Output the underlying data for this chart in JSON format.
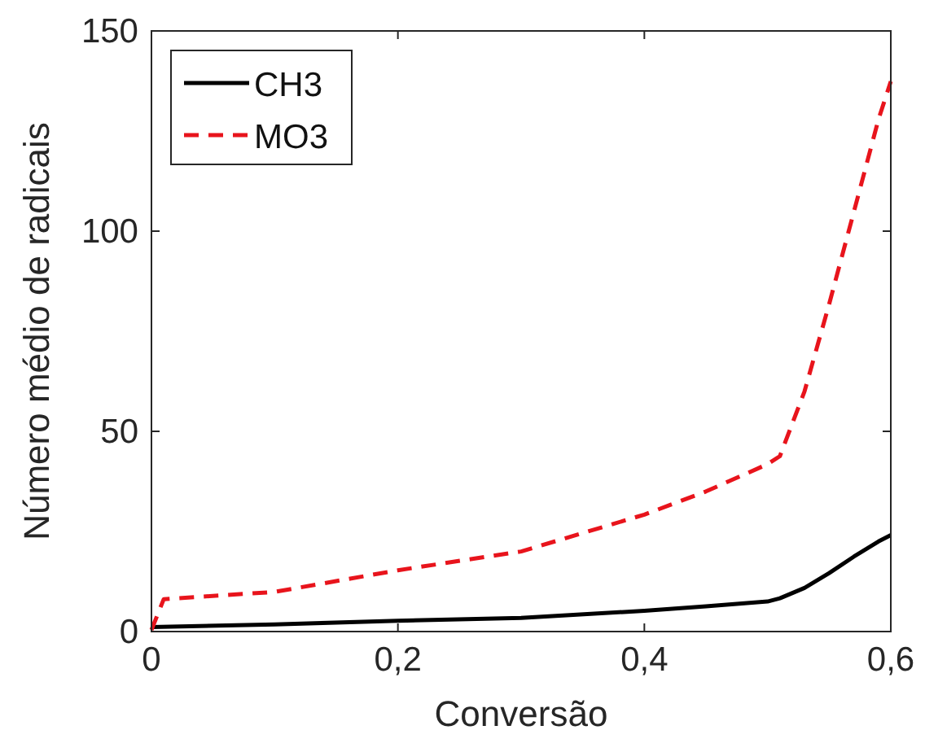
{
  "chart_data": {
    "type": "line",
    "xlabel": "Conversão",
    "ylabel": "Número médio de radicais",
    "xlim": [
      0,
      0.6
    ],
    "ylim": [
      0,
      150
    ],
    "xticks": [
      {
        "value": 0,
        "label": "0"
      },
      {
        "value": 0.2,
        "label": "0,2"
      },
      {
        "value": 0.4,
        "label": "0,4"
      },
      {
        "value": 0.6,
        "label": "0,6"
      }
    ],
    "yticks": [
      0,
      50,
      100,
      150
    ],
    "grid": false,
    "legend": "top left",
    "series": [
      {
        "name": "CH3",
        "color": "#000000",
        "line_style": "solid",
        "x": [
          0,
          0.1,
          0.2,
          0.3,
          0.4,
          0.45,
          0.5,
          0.51,
          0.53,
          0.55,
          0.57,
          0.59,
          0.6
        ],
        "values": [
          1.1,
          1.8,
          2.7,
          3.4,
          5.2,
          6.3,
          7.5,
          8.3,
          10.9,
          14.6,
          18.7,
          22.5,
          24.1
        ]
      },
      {
        "name": "MO3",
        "color": "#e8141c",
        "line_style": "dashed",
        "x": [
          0,
          0.01,
          0.1,
          0.2,
          0.3,
          0.4,
          0.45,
          0.5,
          0.51,
          0.53,
          0.55,
          0.57,
          0.59,
          0.6
        ],
        "values": [
          0.4,
          8.1,
          9.9,
          15.3,
          20,
          29.2,
          35,
          41.8,
          43.8,
          60,
          81.8,
          104.8,
          127.9,
          137.4
        ]
      }
    ]
  }
}
